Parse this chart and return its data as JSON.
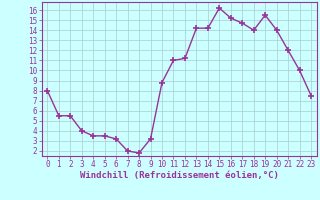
{
  "x": [
    0,
    1,
    2,
    3,
    4,
    5,
    6,
    7,
    8,
    9,
    10,
    11,
    12,
    13,
    14,
    15,
    16,
    17,
    18,
    19,
    20,
    21,
    22,
    23
  ],
  "y": [
    8.0,
    5.5,
    5.5,
    4.0,
    3.5,
    3.5,
    3.2,
    2.0,
    1.8,
    3.2,
    8.8,
    11.0,
    11.2,
    14.2,
    14.2,
    16.2,
    15.2,
    14.7,
    14.0,
    15.5,
    14.0,
    12.0,
    10.0,
    7.5
  ],
  "xlabel": "Windchill (Refroidissement éolien,°C)",
  "xlim": [
    -0.5,
    23.5
  ],
  "ylim": [
    1.5,
    16.8
  ],
  "yticks": [
    2,
    3,
    4,
    5,
    6,
    7,
    8,
    9,
    10,
    11,
    12,
    13,
    14,
    15,
    16
  ],
  "xticks": [
    0,
    1,
    2,
    3,
    4,
    5,
    6,
    7,
    8,
    9,
    10,
    11,
    12,
    13,
    14,
    15,
    16,
    17,
    18,
    19,
    20,
    21,
    22,
    23
  ],
  "line_color": "#993399",
  "marker": "+",
  "marker_size": 4,
  "marker_lw": 1.2,
  "line_width": 1.0,
  "bg_color": "#ccffff",
  "grid_color": "#aacccc",
  "axes_color": "#993399",
  "label_fontsize": 6.5,
  "tick_fontsize": 5.5
}
